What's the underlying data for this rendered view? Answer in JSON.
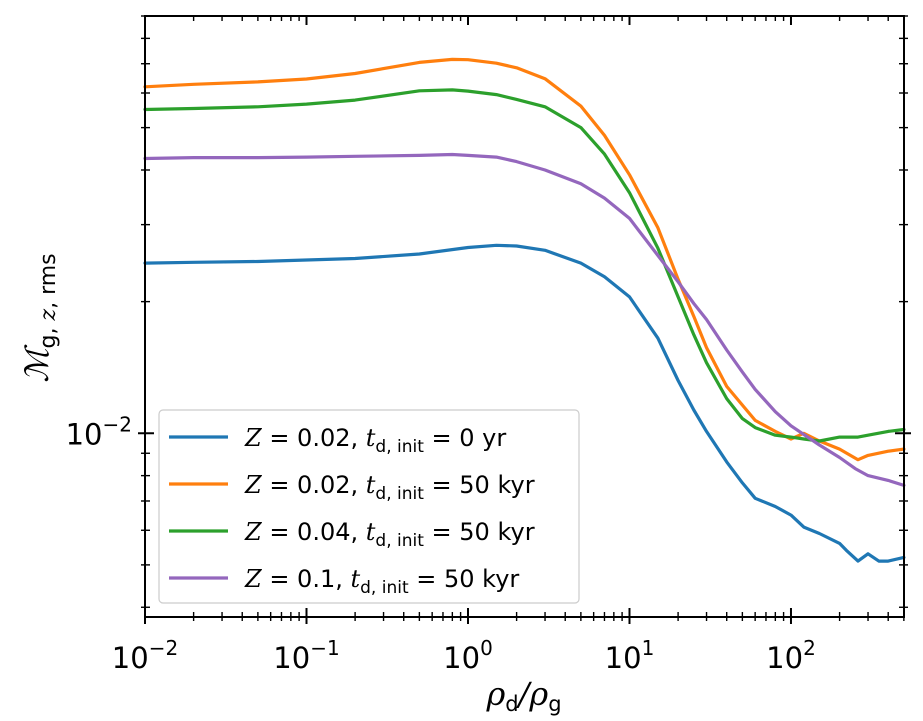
{
  "chart_data": {
    "type": "line",
    "title": "",
    "xlabel": "ρ_d/ρ_g",
    "ylabel": "M_g, z, rms",
    "x_scale": "log",
    "y_scale": "log",
    "xlim": [
      0.01,
      501
    ],
    "ylim": [
      0.0038,
      0.09
    ],
    "x_ticks": [
      {
        "value": 0.01,
        "base": "10",
        "exp": "−2"
      },
      {
        "value": 0.1,
        "base": "10",
        "exp": "−1"
      },
      {
        "value": 1,
        "base": "10",
        "exp": "0"
      },
      {
        "value": 10,
        "base": "10",
        "exp": "1"
      },
      {
        "value": 100,
        "base": "10",
        "exp": "2"
      }
    ],
    "y_ticks": [
      {
        "value": 0.01,
        "base": "10",
        "exp": "−2"
      }
    ],
    "grid": false,
    "legend_position": "lower-left",
    "series": [
      {
        "name": "Z = 0.02, t_d,init = 0 yr",
        "legend": {
          "pre": "Z = 0.02, ",
          "t": "t",
          "sub": "d, init",
          "post": " = 0 yr"
        },
        "color": "#1f77b4",
        "x": [
          0.01,
          0.02,
          0.05,
          0.1,
          0.2,
          0.5,
          1.0,
          1.5,
          2.0,
          3.0,
          5.0,
          7.0,
          10,
          15,
          20,
          25,
          30,
          40,
          50,
          60,
          80,
          100,
          120,
          150,
          200,
          220,
          260,
          300,
          350,
          400,
          500
        ],
        "y": [
          0.0245,
          0.0246,
          0.0247,
          0.0249,
          0.0251,
          0.0257,
          0.0266,
          0.0269,
          0.0268,
          0.0262,
          0.0245,
          0.0228,
          0.0205,
          0.0165,
          0.0132,
          0.0113,
          0.0101,
          0.0086,
          0.0077,
          0.0071,
          0.0068,
          0.0065,
          0.0061,
          0.0059,
          0.0056,
          0.0054,
          0.0051,
          0.0053,
          0.0051,
          0.0051,
          0.0052
        ]
      },
      {
        "name": "Z = 0.02, t_d,init = 50 kyr",
        "legend": {
          "pre": "Z = 0.02, ",
          "t": "t",
          "sub": "d, init",
          "post": " = 50 kyr"
        },
        "color": "#ff7f0e",
        "x": [
          0.01,
          0.02,
          0.05,
          0.1,
          0.2,
          0.5,
          0.8,
          1.0,
          1.5,
          2.0,
          3.0,
          5.0,
          7.0,
          10,
          15,
          20,
          25,
          30,
          40,
          50,
          60,
          80,
          100,
          120,
          150,
          200,
          260,
          300,
          400,
          500
        ],
        "y": [
          0.062,
          0.0628,
          0.0636,
          0.0646,
          0.0665,
          0.0705,
          0.0716,
          0.0715,
          0.0702,
          0.0685,
          0.0647,
          0.056,
          0.048,
          0.039,
          0.0295,
          0.0225,
          0.0185,
          0.0157,
          0.0128,
          0.0116,
          0.0107,
          0.0101,
          0.0097,
          0.01,
          0.0096,
          0.0092,
          0.0087,
          0.0089,
          0.0091,
          0.0092
        ]
      },
      {
        "name": "Z = 0.04, t_d,init = 50 kyr",
        "legend": {
          "pre": "Z = 0.04, ",
          "t": "t",
          "sub": "d, init",
          "post": " = 50 kyr"
        },
        "color": "#2ca02c",
        "x": [
          0.01,
          0.02,
          0.05,
          0.1,
          0.2,
          0.5,
          0.8,
          1.0,
          1.5,
          2.0,
          3.0,
          5.0,
          7.0,
          10,
          15,
          20,
          25,
          30,
          40,
          50,
          60,
          80,
          100,
          120,
          150,
          200,
          260,
          300,
          400,
          500
        ],
        "y": [
          0.055,
          0.0553,
          0.0558,
          0.0566,
          0.0578,
          0.0607,
          0.061,
          0.0606,
          0.0595,
          0.058,
          0.0558,
          0.05,
          0.0435,
          0.0355,
          0.0265,
          0.0205,
          0.0168,
          0.0145,
          0.012,
          0.0108,
          0.0103,
          0.0099,
          0.0098,
          0.0097,
          0.0096,
          0.0098,
          0.0098,
          0.0099,
          0.0101,
          0.0102
        ]
      },
      {
        "name": "Z = 0.1, t_d,init = 50 kyr",
        "legend": {
          "pre": "Z = 0.1, ",
          "t": "t",
          "sub": "d, init",
          "post": " = 50 kyr"
        },
        "color": "#9467bd",
        "x": [
          0.01,
          0.02,
          0.05,
          0.1,
          0.2,
          0.5,
          0.8,
          1.0,
          1.5,
          2.0,
          3.0,
          5.0,
          7.0,
          10,
          15,
          20,
          25,
          30,
          40,
          50,
          60,
          80,
          100,
          150,
          200,
          250,
          300,
          400,
          500
        ],
        "y": [
          0.0425,
          0.0427,
          0.0427,
          0.0428,
          0.043,
          0.0432,
          0.0434,
          0.0432,
          0.0428,
          0.0418,
          0.04,
          0.0372,
          0.0345,
          0.031,
          0.0255,
          0.0222,
          0.0198,
          0.0182,
          0.0155,
          0.0138,
          0.0126,
          0.0112,
          0.0104,
          0.0094,
          0.0088,
          0.0083,
          0.008,
          0.0078,
          0.0076
        ]
      }
    ]
  }
}
